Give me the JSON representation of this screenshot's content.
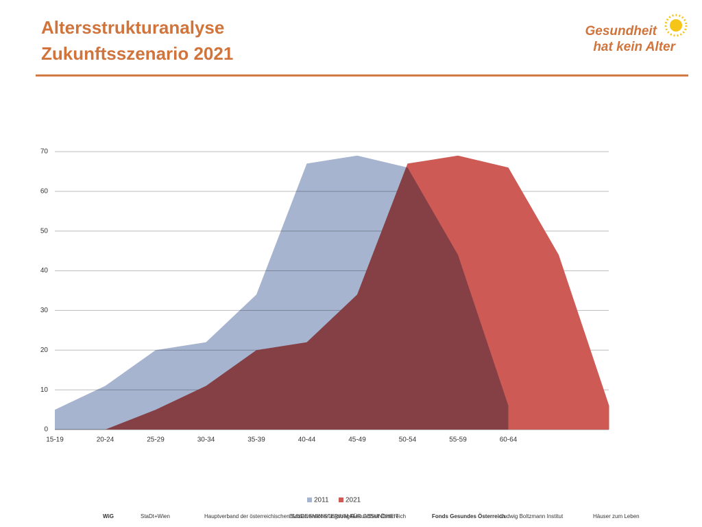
{
  "header": {
    "title_lines": [
      "Altersstrukturanalyse",
      "Zukunftsszenario 2021"
    ],
    "logo_lines": [
      "Gesundheit",
      "hat kein Alter"
    ]
  },
  "chart_data": {
    "type": "area",
    "categories": [
      "15-19",
      "20-24",
      "25-29",
      "30-34",
      "35-39",
      "40-44",
      "45-49",
      "50-54",
      "55-59",
      "60-64",
      null,
      null
    ],
    "series": [
      {
        "name": "2011",
        "color": "#a6b4cf",
        "values": [
          5,
          11,
          20,
          22,
          34,
          67,
          69,
          66,
          44,
          6,
          null,
          null
        ]
      },
      {
        "name": "2021",
        "color": "#cd5a55",
        "values": [
          null,
          0,
          5,
          11,
          20,
          22,
          34,
          67,
          69,
          66,
          44,
          6
        ]
      }
    ],
    "ylim": [
      0,
      70
    ],
    "yticks": [
      0,
      10,
      20,
      30,
      40,
      50,
      60,
      70
    ],
    "grid": true,
    "legend": "bottom"
  },
  "footer_logos": [
    "WiG",
    "StaDt+Wien",
    "Hauptverband der österreichischen Sozialversicherungsträger",
    "BUNDESMINISTERIUM FÜR GESUNDHEIT",
    "Gesundheit Österreich",
    "Fonds Gesundes Österreich",
    "Ludwig Boltzmann Institut",
    "Häuser zum Leben"
  ]
}
